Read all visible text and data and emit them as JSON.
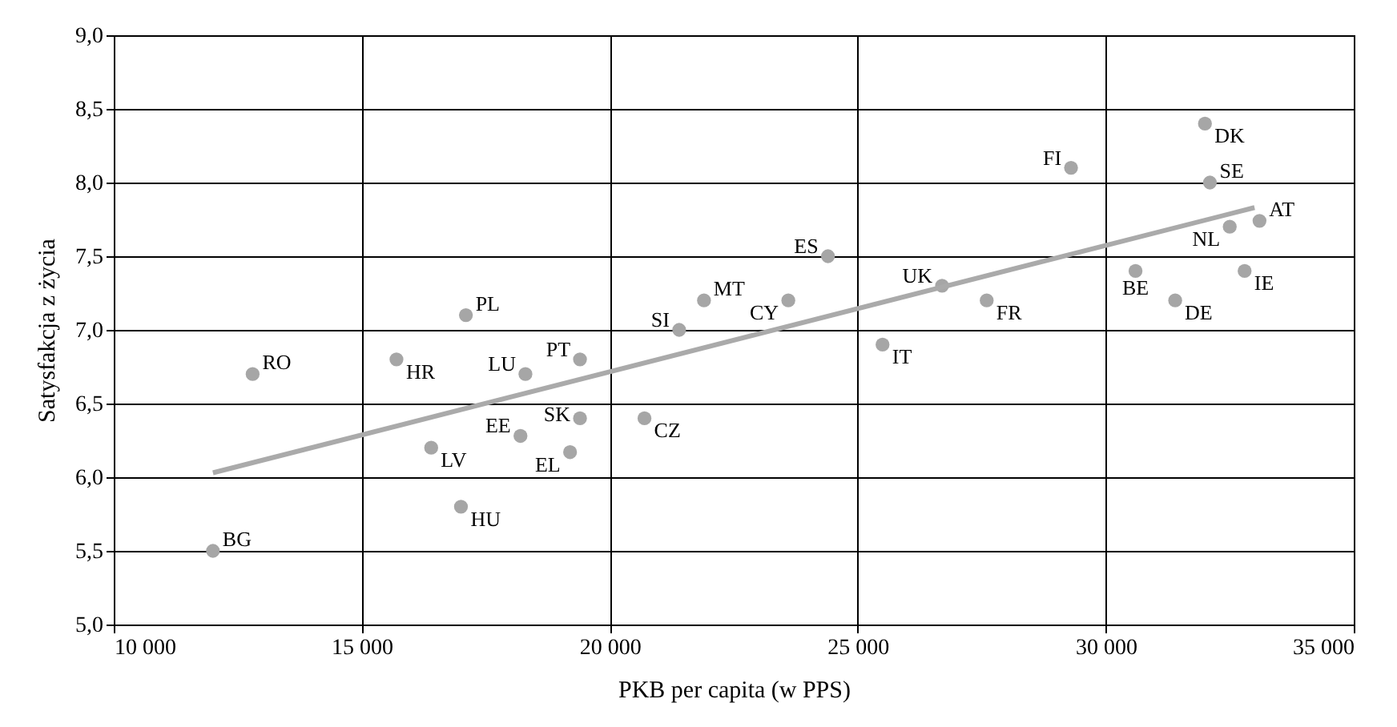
{
  "chart_data": {
    "type": "scatter",
    "xlabel": "PKB per capita (w PPS)",
    "ylabel": "Satysfakcja z życia",
    "xlim": [
      10000,
      35000
    ],
    "ylim": [
      5.0,
      9.0
    ],
    "xticks": [
      {
        "value": 10000,
        "label": "10 000"
      },
      {
        "value": 15000,
        "label": "15 000"
      },
      {
        "value": 20000,
        "label": "20 000"
      },
      {
        "value": 25000,
        "label": "25 000"
      },
      {
        "value": 30000,
        "label": "30 000"
      },
      {
        "value": 35000,
        "label": "35 000"
      }
    ],
    "yticks": [
      {
        "value": 5.0,
        "label": "5,0"
      },
      {
        "value": 5.5,
        "label": "5,5"
      },
      {
        "value": 6.0,
        "label": "6,0"
      },
      {
        "value": 6.5,
        "label": "6,5"
      },
      {
        "value": 7.0,
        "label": "7,0"
      },
      {
        "value": 7.5,
        "label": "7,5"
      },
      {
        "value": 8.0,
        "label": "8,0"
      },
      {
        "value": 8.5,
        "label": "8,5"
      },
      {
        "value": 9.0,
        "label": "9,0"
      }
    ],
    "grid": true,
    "series": [
      {
        "color": "#a6a6a6",
        "marker": "circle",
        "x": [
          12000,
          12800,
          15700,
          17100,
          18300,
          19400,
          16400,
          18200,
          19400,
          19200,
          17000,
          20700,
          21400,
          21900,
          23600,
          24400,
          26700,
          25500,
          29300,
          27600,
          32100,
          32000,
          33100,
          32500,
          30600,
          32800,
          31400
        ],
        "values": [
          5.5,
          6.7,
          6.8,
          7.1,
          6.7,
          6.8,
          6.2,
          6.28,
          6.4,
          6.17,
          5.8,
          6.4,
          7.0,
          7.2,
          7.2,
          7.5,
          7.3,
          6.9,
          8.1,
          7.2,
          8.0,
          8.4,
          7.74,
          7.7,
          7.4,
          7.4,
          7.2
        ],
        "value_labels": [
          "BG",
          "RO",
          "HR",
          "PL",
          "LU",
          "PT",
          "LV",
          "EE",
          "SK",
          "EL",
          "HU",
          "CZ",
          "SI",
          "MT",
          "CY",
          "ES",
          "UK",
          "IT",
          "FI",
          "FR",
          "SE",
          "DK",
          "AT",
          "NL",
          "BE",
          "IE",
          "DE"
        ]
      },
      {
        "type": "line",
        "color": "#aaaaaa",
        "line_style": "solid",
        "x": [
          12000,
          33000
        ],
        "values": [
          6.03,
          7.83
        ]
      }
    ]
  }
}
